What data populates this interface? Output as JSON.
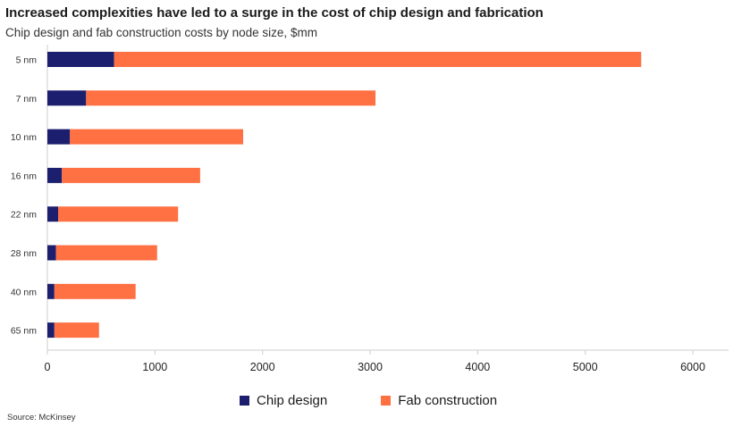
{
  "title": "Increased complexities have led to a surge in the cost of chip design and fabrication",
  "subtitle": "Chip design and fab construction costs by node size, $mm",
  "source": "Source: McKinsey",
  "colors": {
    "chip_design": "#1b1f6e",
    "fab_construction": "#ff7043",
    "axis": "#cccccc"
  },
  "chart_data": {
    "type": "bar",
    "orientation": "horizontal",
    "stacked": true,
    "categories": [
      "5 nm",
      "7 nm",
      "10 nm",
      "16 nm",
      "22 nm",
      "28 nm",
      "40 nm",
      "65 nm"
    ],
    "series": [
      {
        "name": "Chip design",
        "values": [
          620,
          360,
          210,
          135,
          100,
          80,
          65,
          65
        ]
      },
      {
        "name": "Fab construction",
        "values": [
          4900,
          2690,
          1610,
          1285,
          1115,
          940,
          755,
          415
        ]
      }
    ],
    "xlim": [
      0,
      6300
    ],
    "xticks": [
      0,
      1000,
      2000,
      3000,
      4000,
      5000,
      6000
    ],
    "xtick_labels": [
      "0",
      "1000",
      "2000",
      "3000",
      "4000",
      "5000",
      "6000"
    ],
    "legend_position": "bottom-center"
  }
}
